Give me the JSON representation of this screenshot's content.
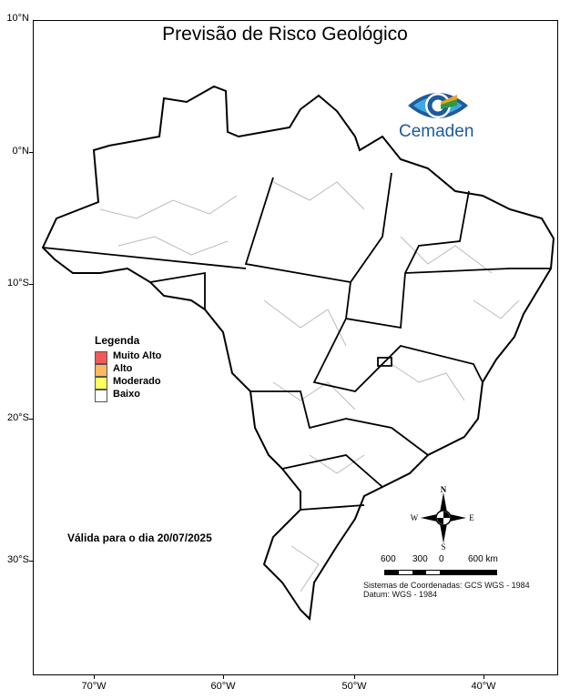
{
  "map": {
    "title": "Previsão de Risco Geológico",
    "logo": {
      "text": "Cemaden",
      "colors": [
        "#1e5a9c",
        "#3fa9e0",
        "#2e9a3e",
        "#f0a020"
      ]
    },
    "latitude_labels": [
      "10°N",
      "0°N",
      "10°S",
      "20°S",
      "30°S"
    ],
    "longitude_labels": [
      "70°W",
      "60°W",
      "50°W",
      "40°W"
    ],
    "legend": {
      "title": "Legenda",
      "items": [
        {
          "label": "Muito Alto",
          "color": "#f05a5a"
        },
        {
          "label": "Alto",
          "color": "#fbb860"
        },
        {
          "label": "Moderado",
          "color": "#ffff60"
        },
        {
          "label": "Baixo",
          "color": "#ffffff"
        }
      ]
    },
    "valid_text": "Válida para o dia 20/07/2025",
    "compass": {
      "n": "N",
      "s": "S",
      "e": "E",
      "w": "W"
    },
    "scale_labels": [
      "600",
      "300",
      "0",
      "600 km"
    ],
    "coord_system": "Sistemas de Coordenadas: GCS WGS - 1984",
    "datum": "Datum: WGS - 1984",
    "risk_level_all_regions": "Baixo"
  }
}
